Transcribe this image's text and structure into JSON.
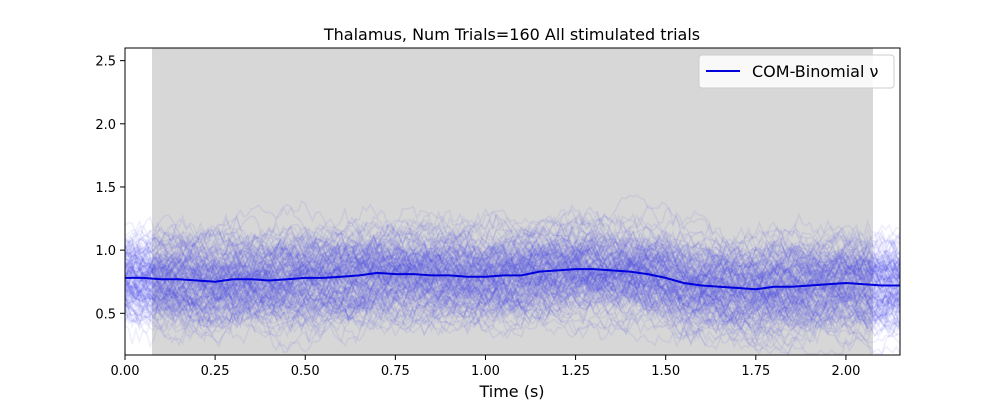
{
  "chart_data": {
    "type": "line",
    "title": "Thalamus, Num Trials=160 All stimulated trials",
    "xlabel": "Time (s)",
    "ylabel": "",
    "xlim": [
      0.0,
      2.15
    ],
    "ylim": [
      0.17,
      2.6
    ],
    "x_ticks": [
      "0.00",
      "0.25",
      "0.50",
      "0.75",
      "1.00",
      "1.25",
      "1.50",
      "1.75",
      "2.00"
    ],
    "y_ticks": [
      "0.5",
      "1.0",
      "1.5",
      "2.0",
      "2.5"
    ],
    "legend": {
      "position": "top-right",
      "entries": [
        "COM-Binomial ν"
      ]
    },
    "stimulation_window": {
      "start": 0.075,
      "end": 2.075,
      "color": "#d7d7d7"
    },
    "trial_count": 160,
    "trial_color": "#4040e6",
    "mean_color": "#0000dd",
    "series": [
      {
        "name": "COM-Binomial ν",
        "x": [
          0.0,
          0.05,
          0.1,
          0.15,
          0.2,
          0.25,
          0.3,
          0.35,
          0.4,
          0.45,
          0.5,
          0.55,
          0.6,
          0.65,
          0.7,
          0.75,
          0.8,
          0.85,
          0.9,
          0.95,
          1.0,
          1.05,
          1.1,
          1.15,
          1.2,
          1.25,
          1.3,
          1.35,
          1.4,
          1.45,
          1.5,
          1.55,
          1.6,
          1.65,
          1.7,
          1.75,
          1.8,
          1.85,
          1.9,
          1.95,
          2.0,
          2.05,
          2.1,
          2.15
        ],
        "values": [
          0.78,
          0.78,
          0.77,
          0.77,
          0.76,
          0.75,
          0.77,
          0.77,
          0.76,
          0.77,
          0.78,
          0.78,
          0.79,
          0.8,
          0.82,
          0.81,
          0.81,
          0.8,
          0.8,
          0.79,
          0.79,
          0.8,
          0.8,
          0.83,
          0.84,
          0.85,
          0.85,
          0.84,
          0.83,
          0.81,
          0.78,
          0.74,
          0.72,
          0.71,
          0.7,
          0.69,
          0.71,
          0.71,
          0.72,
          0.73,
          0.74,
          0.73,
          0.72,
          0.72
        ]
      }
    ]
  }
}
